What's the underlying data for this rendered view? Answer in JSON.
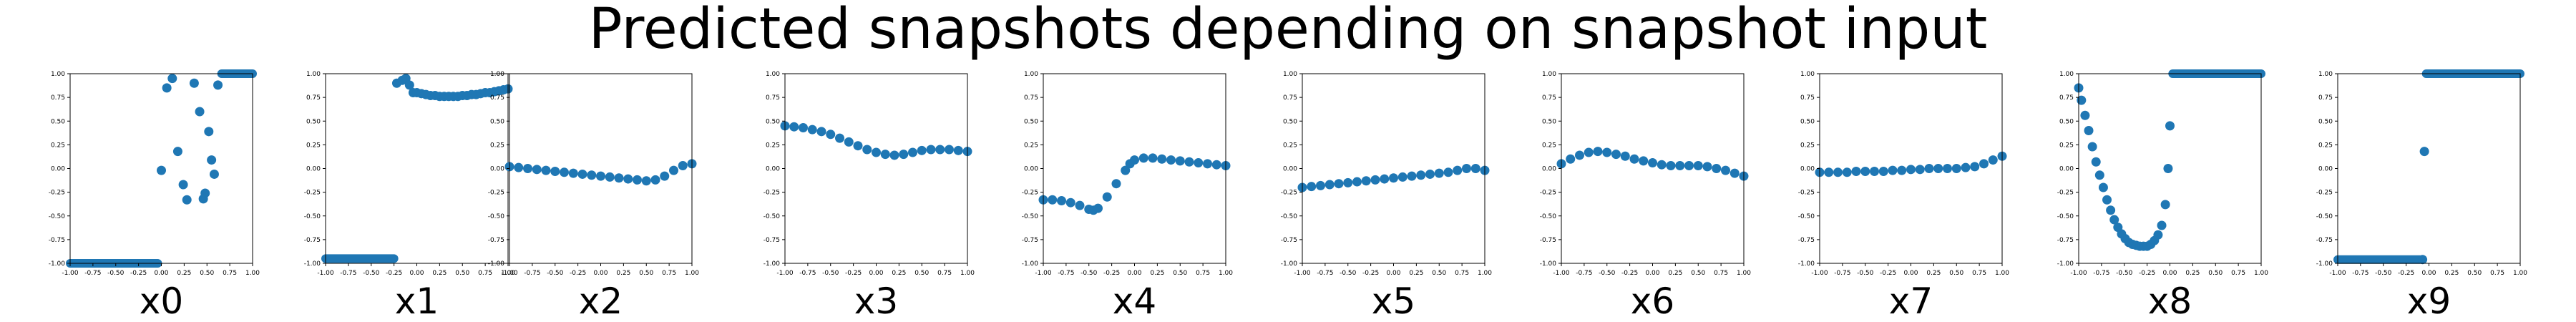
{
  "figure": {
    "title": "Predicted snapshots depending on snapshot input"
  },
  "colors": {
    "marker": "#1f77b4",
    "axes": "#000000",
    "background": "#ffffff"
  },
  "chart_data": [
    {
      "type": "scatter",
      "xlabel": "x0",
      "xlim": [
        -1,
        1
      ],
      "ylim": [
        -1,
        1
      ],
      "xticks": [
        "-1.00",
        "-0.75",
        "-0.50",
        "-0.25",
        "0.00",
        "0.25",
        "0.50",
        "0.75",
        "1.00"
      ],
      "yticks": [
        "-1.00",
        "-0.75",
        "-0.50",
        "-0.25",
        "0.00",
        "0.25",
        "0.50",
        "0.75",
        "1.00"
      ],
      "segments": [
        {
          "x": [
            -1.0,
            -0.04
          ],
          "y": -1.0
        },
        {
          "x": [
            0.66,
            1.0
          ],
          "y": 1.0
        }
      ],
      "x": [
        0.0,
        0.06,
        0.12,
        0.18,
        0.24,
        0.28,
        0.36,
        0.42,
        0.46,
        0.48,
        0.52,
        0.55,
        0.58,
        0.62
      ],
      "y": [
        -0.02,
        0.85,
        0.95,
        0.18,
        -0.17,
        -0.33,
        0.9,
        0.6,
        -0.32,
        -0.26,
        0.39,
        0.09,
        -0.06,
        0.88
      ]
    },
    {
      "type": "scatter",
      "xlabel": "x1",
      "xlim": [
        -1,
        1
      ],
      "ylim": [
        -1,
        1
      ],
      "xticks": [
        "-1.00",
        "-0.75",
        "-0.50",
        "-0.25",
        "0.00",
        "0.25",
        "0.50",
        "0.75",
        "1.00"
      ],
      "yticks": [
        "-1.00",
        "-0.75",
        "-0.50",
        "-0.25",
        "0.00",
        "0.25",
        "0.50",
        "0.75",
        "1.00"
      ],
      "segments": [
        {
          "x": [
            -1.0,
            -0.25
          ],
          "y": -0.95
        }
      ],
      "x": [
        -0.22,
        -0.16,
        -0.12,
        -0.08,
        -0.04,
        0.0,
        0.05,
        0.1,
        0.15,
        0.2,
        0.25,
        0.3,
        0.35,
        0.4,
        0.45,
        0.5,
        0.55,
        0.6,
        0.65,
        0.7,
        0.75,
        0.8,
        0.85,
        0.9,
        0.95,
        1.0
      ],
      "y": [
        0.9,
        0.93,
        0.95,
        0.88,
        0.8,
        0.8,
        0.79,
        0.78,
        0.77,
        0.77,
        0.76,
        0.76,
        0.76,
        0.76,
        0.76,
        0.77,
        0.77,
        0.78,
        0.78,
        0.79,
        0.8,
        0.8,
        0.81,
        0.82,
        0.83,
        0.84
      ]
    },
    {
      "type": "scatter",
      "xlabel": "x2",
      "xlim": [
        -1,
        1
      ],
      "ylim": [
        -1,
        1
      ],
      "xticks": [
        "-1.00",
        "-0.75",
        "-0.50",
        "-0.25",
        "0.00",
        "0.25",
        "0.50",
        "0.75",
        "1.00"
      ],
      "yticks": [
        "-1.00",
        "-0.75",
        "-0.50",
        "-0.25",
        "0.00",
        "0.25",
        "0.50",
        "0.75",
        "1.00"
      ],
      "segments": [],
      "x": [
        -1.0,
        -0.9,
        -0.8,
        -0.7,
        -0.6,
        -0.5,
        -0.4,
        -0.3,
        -0.2,
        -0.1,
        0.0,
        0.1,
        0.2,
        0.3,
        0.4,
        0.5,
        0.6,
        0.7,
        0.8,
        0.9,
        1.0
      ],
      "y": [
        0.02,
        0.01,
        0.0,
        -0.01,
        -0.02,
        -0.03,
        -0.04,
        -0.05,
        -0.06,
        -0.07,
        -0.08,
        -0.09,
        -0.1,
        -0.11,
        -0.12,
        -0.13,
        -0.12,
        -0.08,
        -0.02,
        0.03,
        0.05
      ]
    },
    {
      "type": "scatter",
      "xlabel": "x3",
      "xlim": [
        -1,
        1
      ],
      "ylim": [
        -1,
        1
      ],
      "xticks": [
        "-1.00",
        "-0.75",
        "-0.50",
        "-0.25",
        "0.00",
        "0.25",
        "0.50",
        "0.75",
        "1.00"
      ],
      "yticks": [
        "-1.00",
        "-0.75",
        "-0.50",
        "-0.25",
        "0.00",
        "0.25",
        "0.50",
        "0.75",
        "1.00"
      ],
      "segments": [],
      "x": [
        -1.0,
        -0.9,
        -0.8,
        -0.7,
        -0.6,
        -0.5,
        -0.4,
        -0.3,
        -0.2,
        -0.1,
        0.0,
        0.1,
        0.2,
        0.3,
        0.4,
        0.5,
        0.6,
        0.7,
        0.8,
        0.9,
        1.0
      ],
      "y": [
        0.45,
        0.44,
        0.43,
        0.41,
        0.39,
        0.36,
        0.32,
        0.28,
        0.24,
        0.2,
        0.17,
        0.15,
        0.14,
        0.15,
        0.17,
        0.19,
        0.2,
        0.2,
        0.2,
        0.19,
        0.18
      ]
    },
    {
      "type": "scatter",
      "xlabel": "x4",
      "xlim": [
        -1,
        1
      ],
      "ylim": [
        -1,
        1
      ],
      "xticks": [
        "-1.00",
        "-0.75",
        "-0.50",
        "-0.25",
        "0.00",
        "0.25",
        "0.50",
        "0.75",
        "1.00"
      ],
      "yticks": [
        "-1.00",
        "-0.75",
        "-0.50",
        "-0.25",
        "0.00",
        "0.25",
        "0.50",
        "0.75",
        "1.00"
      ],
      "segments": [],
      "x": [
        -1.0,
        -0.9,
        -0.8,
        -0.7,
        -0.6,
        -0.5,
        -0.45,
        -0.4,
        -0.3,
        -0.2,
        -0.1,
        -0.05,
        0.0,
        0.1,
        0.2,
        0.3,
        0.4,
        0.5,
        0.6,
        0.7,
        0.8,
        0.9,
        1.0
      ],
      "y": [
        -0.33,
        -0.33,
        -0.34,
        -0.36,
        -0.39,
        -0.43,
        -0.44,
        -0.42,
        -0.3,
        -0.16,
        -0.02,
        0.05,
        0.09,
        0.11,
        0.11,
        0.1,
        0.09,
        0.08,
        0.07,
        0.06,
        0.05,
        0.04,
        0.03
      ]
    },
    {
      "type": "scatter",
      "xlabel": "x5",
      "xlim": [
        -1,
        1
      ],
      "ylim": [
        -1,
        1
      ],
      "xticks": [
        "-1.00",
        "-0.75",
        "-0.50",
        "-0.25",
        "0.00",
        "0.25",
        "0.50",
        "0.75",
        "1.00"
      ],
      "yticks": [
        "-1.00",
        "-0.75",
        "-0.50",
        "-0.25",
        "0.00",
        "0.25",
        "0.50",
        "0.75",
        "1.00"
      ],
      "segments": [],
      "x": [
        -1.0,
        -0.9,
        -0.8,
        -0.7,
        -0.6,
        -0.5,
        -0.4,
        -0.3,
        -0.2,
        -0.1,
        0.0,
        0.1,
        0.2,
        0.3,
        0.4,
        0.5,
        0.6,
        0.7,
        0.8,
        0.9,
        1.0
      ],
      "y": [
        -0.2,
        -0.19,
        -0.18,
        -0.17,
        -0.16,
        -0.15,
        -0.14,
        -0.13,
        -0.12,
        -0.11,
        -0.1,
        -0.09,
        -0.08,
        -0.07,
        -0.06,
        -0.05,
        -0.04,
        -0.02,
        0.0,
        0.0,
        -0.02
      ]
    },
    {
      "type": "scatter",
      "xlabel": "x6",
      "xlim": [
        -1,
        1
      ],
      "ylim": [
        -1,
        1
      ],
      "xticks": [
        "-1.00",
        "-0.75",
        "-0.50",
        "-0.25",
        "0.00",
        "0.25",
        "0.50",
        "0.75",
        "1.00"
      ],
      "yticks": [
        "-1.00",
        "-0.75",
        "-0.50",
        "-0.25",
        "0.00",
        "0.25",
        "0.50",
        "0.75",
        "1.00"
      ],
      "segments": [],
      "x": [
        -1.0,
        -0.9,
        -0.8,
        -0.7,
        -0.6,
        -0.5,
        -0.4,
        -0.3,
        -0.2,
        -0.1,
        0.0,
        0.1,
        0.2,
        0.3,
        0.4,
        0.5,
        0.6,
        0.7,
        0.8,
        0.9,
        1.0
      ],
      "y": [
        0.05,
        0.1,
        0.14,
        0.17,
        0.18,
        0.17,
        0.15,
        0.13,
        0.1,
        0.08,
        0.06,
        0.04,
        0.03,
        0.03,
        0.03,
        0.03,
        0.02,
        0.0,
        -0.02,
        -0.05,
        -0.08
      ]
    },
    {
      "type": "scatter",
      "xlabel": "x7",
      "xlim": [
        -1,
        1
      ],
      "ylim": [
        -1,
        1
      ],
      "xticks": [
        "-1.00",
        "-0.75",
        "-0.50",
        "-0.25",
        "0.00",
        "0.25",
        "0.50",
        "0.75",
        "1.00"
      ],
      "yticks": [
        "-1.00",
        "-0.75",
        "-0.50",
        "-0.25",
        "0.00",
        "0.25",
        "0.50",
        "0.75",
        "1.00"
      ],
      "segments": [],
      "x": [
        -1.0,
        -0.9,
        -0.8,
        -0.7,
        -0.6,
        -0.5,
        -0.4,
        -0.3,
        -0.2,
        -0.1,
        0.0,
        0.1,
        0.2,
        0.3,
        0.4,
        0.5,
        0.6,
        0.7,
        0.8,
        0.9,
        1.0
      ],
      "y": [
        -0.04,
        -0.04,
        -0.04,
        -0.04,
        -0.03,
        -0.03,
        -0.03,
        -0.03,
        -0.02,
        -0.02,
        -0.01,
        -0.01,
        0.0,
        0.0,
        0.0,
        0.0,
        0.01,
        0.02,
        0.05,
        0.09,
        0.13
      ]
    },
    {
      "type": "scatter",
      "xlabel": "x8",
      "xlim": [
        -1,
        1
      ],
      "ylim": [
        -1,
        1
      ],
      "xticks": [
        "-1.00",
        "-0.75",
        "-0.50",
        "-0.25",
        "0.00",
        "0.25",
        "0.50",
        "0.75",
        "1.00"
      ],
      "yticks": [
        "-1.00",
        "-0.75",
        "-0.50",
        "-0.25",
        "0.00",
        "0.25",
        "0.50",
        "0.75",
        "1.00"
      ],
      "segments": [
        {
          "x": [
            0.03,
            1.0
          ],
          "y": 1.0
        }
      ],
      "x": [
        -1.0,
        -0.97,
        -0.93,
        -0.89,
        -0.85,
        -0.81,
        -0.77,
        -0.73,
        -0.69,
        -0.65,
        -0.61,
        -0.57,
        -0.53,
        -0.49,
        -0.45,
        -0.41,
        -0.37,
        -0.33,
        -0.29,
        -0.25,
        -0.21,
        -0.17,
        -0.13,
        -0.09,
        -0.05,
        -0.02,
        0.0
      ],
      "y": [
        0.85,
        0.72,
        0.56,
        0.4,
        0.23,
        0.07,
        -0.07,
        -0.2,
        -0.33,
        -0.44,
        -0.54,
        -0.62,
        -0.69,
        -0.74,
        -0.78,
        -0.8,
        -0.81,
        -0.82,
        -0.82,
        -0.82,
        -0.8,
        -0.76,
        -0.7,
        -0.6,
        -0.38,
        0.0,
        0.45
      ]
    },
    {
      "type": "scatter",
      "xlabel": "x9",
      "xlim": [
        -1,
        1
      ],
      "ylim": [
        -1,
        1
      ],
      "xticks": [
        "-1.00",
        "-0.75",
        "-0.50",
        "-0.25",
        "0.00",
        "0.25",
        "0.50",
        "0.75",
        "1.00"
      ],
      "yticks": [
        "-1.00",
        "-0.75",
        "-0.50",
        "-0.25",
        "0.00",
        "0.25",
        "0.50",
        "0.75",
        "1.00"
      ],
      "segments": [
        {
          "x": [
            -1.0,
            -0.1
          ],
          "y": -0.96
        },
        {
          "x": [
            -0.03,
            1.0
          ],
          "y": 1.0
        }
      ],
      "x": [
        -0.07,
        -0.05
      ],
      "y": [
        -0.96,
        0.18
      ]
    }
  ]
}
